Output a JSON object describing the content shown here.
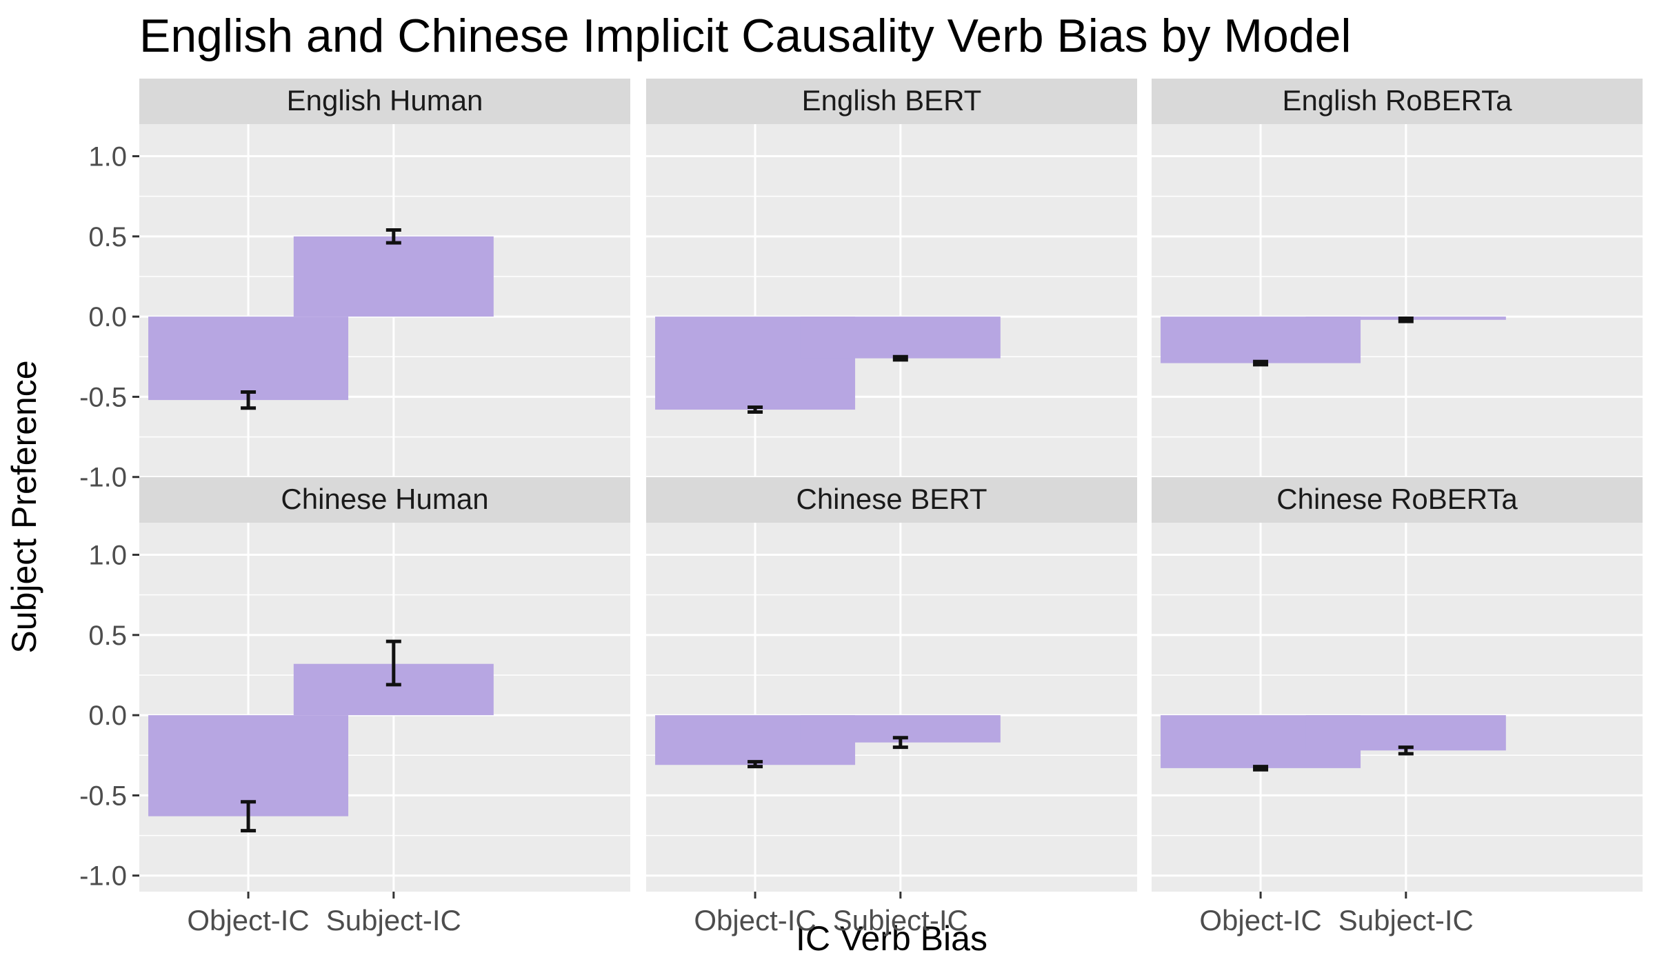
{
  "chart_data": {
    "type": "bar",
    "title": "English and Chinese Implicit Causality Verb Bias by Model",
    "xlabel": "IC Verb Bias",
    "ylabel": "Subject Preference",
    "ylim": [
      -1.1,
      1.2
    ],
    "yticks": [
      "1.0",
      "0.5",
      "0.0",
      "-0.5",
      "-1.0"
    ],
    "categories": [
      "Object-IC",
      "Subject-IC"
    ],
    "grid": true,
    "colors": {
      "bar": "#b7a6e2",
      "panel": "#ebebeb",
      "strip": "#d9d9d9",
      "grid": "#ffffff",
      "error": "#111111"
    },
    "panels": [
      {
        "name": "English Human",
        "values": [
          -0.52,
          0.5
        ],
        "err_low": [
          -0.57,
          0.46
        ],
        "err_high": [
          -0.47,
          0.54
        ]
      },
      {
        "name": "English BERT",
        "values": [
          -0.58,
          -0.26
        ],
        "err_low": [
          -0.595,
          -0.27
        ],
        "err_high": [
          -0.565,
          -0.25
        ]
      },
      {
        "name": "English RoBERTa",
        "values": [
          -0.29,
          -0.02
        ],
        "err_low": [
          -0.3,
          -0.03
        ],
        "err_high": [
          -0.28,
          -0.01
        ]
      },
      {
        "name": "Chinese Human",
        "values": [
          -0.63,
          0.32
        ],
        "err_low": [
          -0.72,
          0.19
        ],
        "err_high": [
          -0.54,
          0.46
        ]
      },
      {
        "name": "Chinese BERT",
        "values": [
          -0.31,
          -0.17
        ],
        "err_low": [
          -0.32,
          -0.2
        ],
        "err_high": [
          -0.29,
          -0.14
        ]
      },
      {
        "name": "Chinese RoBERTa",
        "values": [
          -0.33,
          -0.22
        ],
        "err_low": [
          -0.34,
          -0.24
        ],
        "err_high": [
          -0.32,
          -0.2
        ]
      }
    ]
  }
}
